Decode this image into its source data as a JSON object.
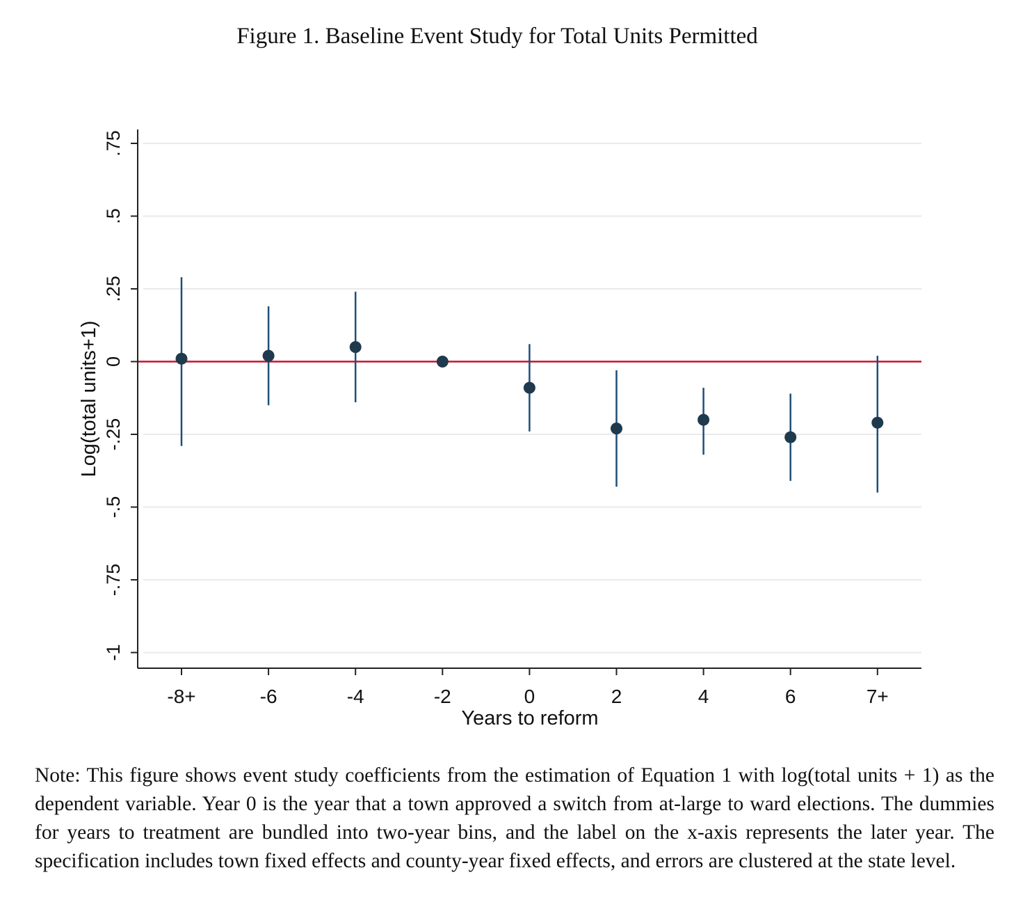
{
  "figure": {
    "title": "Figure 1. Baseline Event Study for Total Units Permitted",
    "note": "Note: This figure shows event study coefficients from the estimation of Equation 1 with log(total units + 1) as the dependent variable. Year 0 is the year that a town approved a switch from at-large to ward elections. The dummies for years to treatment are bundled into two-year bins, and the label on the x-axis represents the later year. The specification includes town fixed effects and county-year fixed effects, and errors are clustered at the state level."
  },
  "chart_data": {
    "type": "scatter",
    "title": "",
    "xlabel": "Years to reform",
    "ylabel": "Log(total units+1)",
    "categories": [
      "-8+",
      "-6",
      "-4",
      "-2",
      "0",
      "2",
      "4",
      "6",
      "7+"
    ],
    "series": [
      {
        "values": [
          0.01,
          0.02,
          0.05,
          0.0,
          -0.09,
          -0.23,
          -0.2,
          -0.26,
          -0.21
        ],
        "ci_lower": [
          -0.29,
          -0.15,
          -0.14,
          0.0,
          -0.24,
          -0.43,
          -0.32,
          -0.41,
          -0.45
        ],
        "ci_upper": [
          0.29,
          0.19,
          0.24,
          0.0,
          0.06,
          -0.03,
          -0.09,
          -0.11,
          0.02
        ]
      }
    ],
    "yticks": [
      ".75",
      ".5",
      ".25",
      "0",
      "-.25",
      "-.5",
      "-.75",
      "-1"
    ],
    "ytick_values": [
      0.75,
      0.5,
      0.25,
      0,
      -0.25,
      -0.5,
      -0.75,
      -1
    ],
    "ylim": [
      -1.05,
      0.8
    ],
    "reference_line": 0,
    "grid": true,
    "colors": {
      "point": "#1f3a4d",
      "error_bar": "#1f4e79",
      "reference_line": "#c8102e",
      "grid": "#eaeaea",
      "axis": "#222222"
    }
  }
}
